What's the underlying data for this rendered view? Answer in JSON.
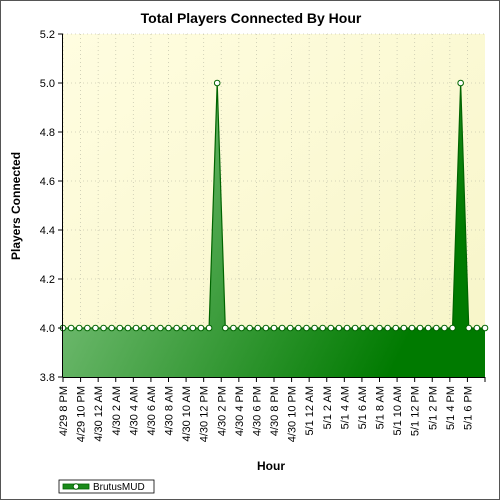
{
  "chart_data": {
    "type": "area",
    "title": "Total Players Connected By Hour",
    "xlabel": "Hour",
    "ylabel": "Players Connected",
    "ylim": [
      3.8,
      5.2
    ],
    "yticks": [
      "3.8",
      "4.0",
      "4.2",
      "4.4",
      "4.6",
      "4.8",
      "5.0",
      "5.2"
    ],
    "grid": true,
    "legend_position": "bottom-left",
    "colors": {
      "plot_bg_light": "#fffde0",
      "plot_bg_dark": "#f7f5c8",
      "area_light": "#8fcc8f",
      "area_dark": "#007a00",
      "line": "#006400",
      "grid": "#c8c8b0"
    },
    "x_tick_labels": [
      "4/29 8 PM",
      "4/29 10 PM",
      "4/30 12 AM",
      "4/30 2 AM",
      "4/30 4 AM",
      "4/30 6 AM",
      "4/30 8 AM",
      "4/30 10 AM",
      "4/30 12 PM",
      "4/30 2 PM",
      "4/30 4 PM",
      "4/30 6 PM",
      "4/30 8 PM",
      "4/30 10 PM",
      "5/1 12 AM",
      "5/1 2 AM",
      "5/1 4 AM",
      "5/1 6 AM",
      "5/1 8 AM",
      "5/1 10 AM",
      "5/1 12 PM",
      "5/1 2 PM",
      "5/1 4 PM",
      "5/1 6 PM"
    ],
    "series": [
      {
        "name": "BrutusMUD",
        "values": [
          4,
          4,
          4,
          4,
          4,
          4,
          4,
          4,
          4,
          4,
          4,
          4,
          4,
          4,
          4,
          4,
          4,
          4,
          4,
          5,
          4,
          4,
          4,
          4,
          4,
          4,
          4,
          4,
          4,
          4,
          4,
          4,
          4,
          4,
          4,
          4,
          4,
          4,
          4,
          4,
          4,
          4,
          4,
          4,
          4,
          4,
          4,
          4,
          4,
          5,
          4,
          4,
          4
        ]
      }
    ]
  }
}
